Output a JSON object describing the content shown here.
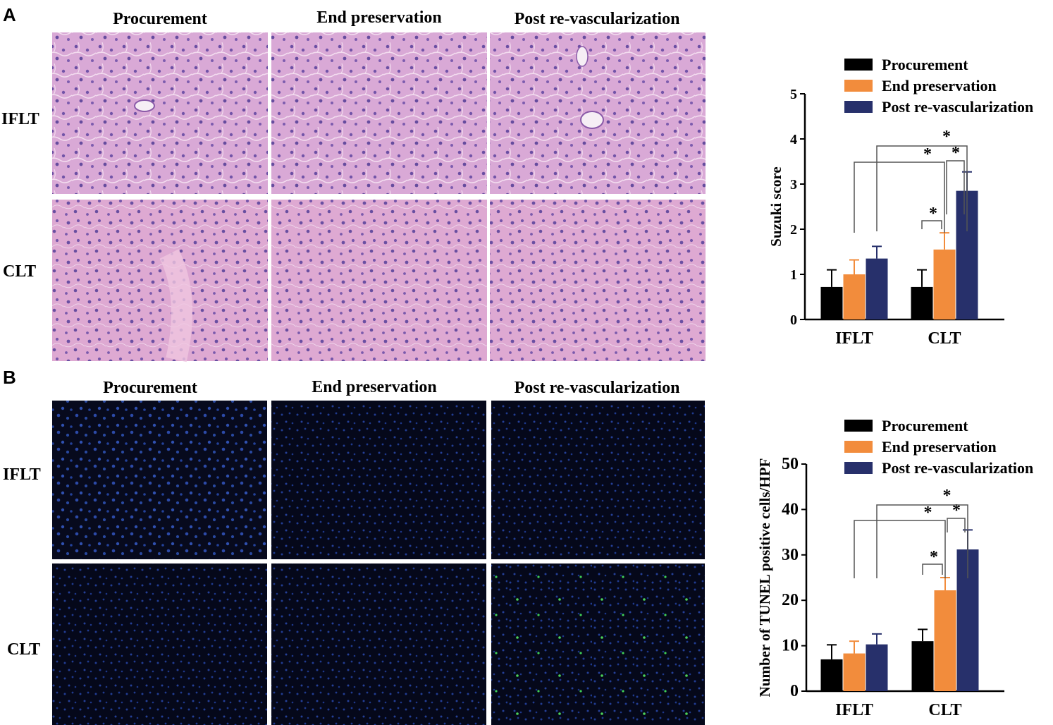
{
  "panels": [
    {
      "letter": "A",
      "columns": [
        "Procurement",
        "End preservation",
        "Post re-vascularization"
      ],
      "rows": [
        "IFLT",
        "CLT"
      ],
      "image_style": "he"
    },
    {
      "letter": "B",
      "columns": [
        "Procurement",
        "End preservation",
        "Post re-vascularization"
      ],
      "rows": [
        "IFLT",
        "CLT"
      ],
      "image_style": "tunel"
    }
  ],
  "chart_data": [
    {
      "type": "bar",
      "ylabel": "Suzuki score",
      "ylim": [
        0,
        5
      ],
      "yticks": [
        0,
        1,
        2,
        3,
        4,
        5
      ],
      "categories": [
        "IFLT",
        "CLT"
      ],
      "legend_position": "top",
      "series": [
        {
          "name": "Procurement",
          "color": "#000000",
          "values": [
            0.72,
            0.72
          ],
          "errors": [
            0.38,
            0.38
          ]
        },
        {
          "name": "End preservation",
          "color": "#f28c3c",
          "values": [
            1.0,
            1.55
          ],
          "errors": [
            0.32,
            0.37
          ]
        },
        {
          "name": "Post re-vascularization",
          "color": "#27306b",
          "values": [
            1.35,
            2.85
          ],
          "errors": [
            0.27,
            0.42
          ]
        }
      ],
      "significance_marker": "*"
    },
    {
      "type": "bar",
      "ylabel": "Number of TUNEL positive cells/HPF",
      "ylim": [
        0,
        50
      ],
      "yticks": [
        0,
        10,
        20,
        30,
        40,
        50
      ],
      "categories": [
        "IFLT",
        "CLT"
      ],
      "legend_position": "top",
      "series": [
        {
          "name": "Procurement",
          "color": "#000000",
          "values": [
            7,
            11
          ],
          "errors": [
            3.2,
            2.6
          ]
        },
        {
          "name": "End preservation",
          "color": "#f28c3c",
          "values": [
            8.3,
            22.2
          ],
          "errors": [
            2.7,
            2.8
          ]
        },
        {
          "name": "Post re-vascularization",
          "color": "#27306b",
          "values": [
            10.3,
            31.2
          ],
          "errors": [
            2.3,
            4.3
          ]
        }
      ],
      "significance_marker": "*"
    }
  ]
}
